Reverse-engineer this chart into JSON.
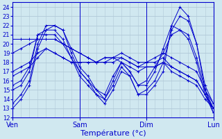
{
  "xlabel": "Température (°c)",
  "xlim": [
    0,
    72
  ],
  "ylim": [
    12,
    24.5
  ],
  "yticks": [
    12,
    13,
    14,
    15,
    16,
    17,
    18,
    19,
    20,
    21,
    22,
    23,
    24
  ],
  "xtick_positions": [
    0,
    24,
    48,
    72
  ],
  "xtick_labels": [
    "Ven",
    "Sam",
    "Dim",
    "Lun"
  ],
  "bg_color": "#d0e8f0",
  "grid_color": "#b0c8d8",
  "line_color": "#0000cc",
  "series": [
    {
      "x": [
        0,
        3,
        6,
        9,
        12,
        15,
        18,
        21,
        24,
        27,
        30,
        33,
        36,
        39,
        42,
        45,
        48,
        51,
        54,
        57,
        60,
        63,
        66,
        69,
        72
      ],
      "y": [
        13.0,
        14.0,
        15.5,
        19.5,
        21.5,
        22.0,
        21.5,
        19.0,
        17.0,
        16.0,
        14.5,
        13.5,
        15.0,
        17.0,
        16.5,
        14.5,
        14.5,
        15.5,
        17.0,
        22.0,
        24.0,
        23.0,
        20.0,
        15.0,
        13.0
      ]
    },
    {
      "x": [
        0,
        3,
        6,
        9,
        12,
        15,
        18,
        21,
        24,
        27,
        30,
        33,
        36,
        39,
        42,
        45,
        48,
        51,
        54,
        57,
        60,
        63,
        66,
        69,
        72
      ],
      "y": [
        13.5,
        14.5,
        16.0,
        20.0,
        22.0,
        22.0,
        21.5,
        19.5,
        17.5,
        16.5,
        15.0,
        14.0,
        15.5,
        17.5,
        16.5,
        14.5,
        15.0,
        16.0,
        18.0,
        21.5,
        23.0,
        22.5,
        20.0,
        15.5,
        13.5
      ]
    },
    {
      "x": [
        0,
        3,
        6,
        9,
        12,
        15,
        18,
        21,
        24,
        27,
        30,
        33,
        36,
        39,
        42,
        45,
        48,
        51,
        54,
        57,
        60,
        63,
        66,
        69,
        72
      ],
      "y": [
        15.0,
        15.5,
        17.0,
        21.0,
        21.5,
        21.5,
        20.5,
        18.5,
        16.5,
        15.5,
        14.5,
        14.0,
        16.0,
        18.0,
        17.0,
        15.5,
        16.0,
        17.5,
        19.0,
        21.0,
        21.5,
        21.0,
        18.5,
        15.0,
        12.5
      ]
    },
    {
      "x": [
        0,
        3,
        6,
        9,
        12,
        15,
        18,
        21,
        24,
        27,
        30,
        33,
        36,
        39,
        42,
        45,
        48,
        51,
        54,
        57,
        60,
        63,
        66,
        69,
        72
      ],
      "y": [
        15.5,
        16.0,
        17.5,
        21.0,
        21.0,
        21.0,
        20.0,
        18.5,
        17.0,
        16.0,
        15.0,
        14.5,
        16.5,
        18.0,
        17.0,
        15.5,
        15.5,
        17.0,
        19.5,
        22.0,
        21.5,
        20.5,
        18.0,
        14.5,
        12.5
      ]
    },
    {
      "x": [
        0,
        3,
        6,
        9,
        12,
        15,
        18,
        21,
        24,
        27,
        30,
        33,
        36,
        39,
        42,
        45,
        48,
        51,
        54,
        57,
        60,
        63,
        66,
        69,
        72
      ],
      "y": [
        19.0,
        19.5,
        20.0,
        20.5,
        20.5,
        20.5,
        20.0,
        19.5,
        19.0,
        18.5,
        18.0,
        18.0,
        18.5,
        19.0,
        18.5,
        18.0,
        18.0,
        18.5,
        19.0,
        18.5,
        18.0,
        17.5,
        17.0,
        15.0,
        13.5
      ]
    },
    {
      "x": [
        0,
        3,
        6,
        9,
        12,
        15,
        18,
        21,
        24,
        27,
        30,
        33,
        36,
        39,
        42,
        45,
        48,
        51,
        54,
        57,
        60,
        63,
        66,
        69,
        72
      ],
      "y": [
        20.5,
        20.5,
        20.5,
        20.5,
        20.5,
        20.5,
        20.0,
        19.5,
        19.0,
        18.5,
        18.0,
        18.0,
        18.0,
        18.5,
        18.0,
        17.5,
        17.5,
        17.5,
        18.0,
        17.5,
        17.0,
        16.5,
        16.0,
        14.5,
        13.0
      ]
    },
    {
      "x": [
        0,
        3,
        6,
        9,
        12,
        15,
        18,
        21,
        24,
        27,
        30,
        33,
        36,
        39,
        42,
        45,
        48,
        51,
        54,
        57,
        60,
        63,
        66,
        69,
        72
      ],
      "y": [
        17.0,
        17.5,
        18.0,
        19.0,
        19.5,
        19.0,
        18.5,
        18.0,
        18.0,
        18.0,
        18.0,
        18.5,
        18.5,
        18.5,
        18.0,
        17.5,
        18.0,
        18.0,
        18.5,
        17.5,
        17.0,
        16.5,
        16.0,
        14.5,
        13.0
      ]
    },
    {
      "x": [
        0,
        3,
        6,
        9,
        12,
        15,
        18,
        21,
        24,
        27,
        30,
        33,
        36,
        39,
        42,
        45,
        48,
        51,
        54,
        57,
        60,
        63,
        66,
        69,
        72
      ],
      "y": [
        16.5,
        17.0,
        17.5,
        18.5,
        19.5,
        19.0,
        18.5,
        18.0,
        18.0,
        18.0,
        18.0,
        18.5,
        18.5,
        18.0,
        17.5,
        17.0,
        17.5,
        17.5,
        18.0,
        17.0,
        16.5,
        16.0,
        15.5,
        14.0,
        13.0
      ]
    }
  ]
}
